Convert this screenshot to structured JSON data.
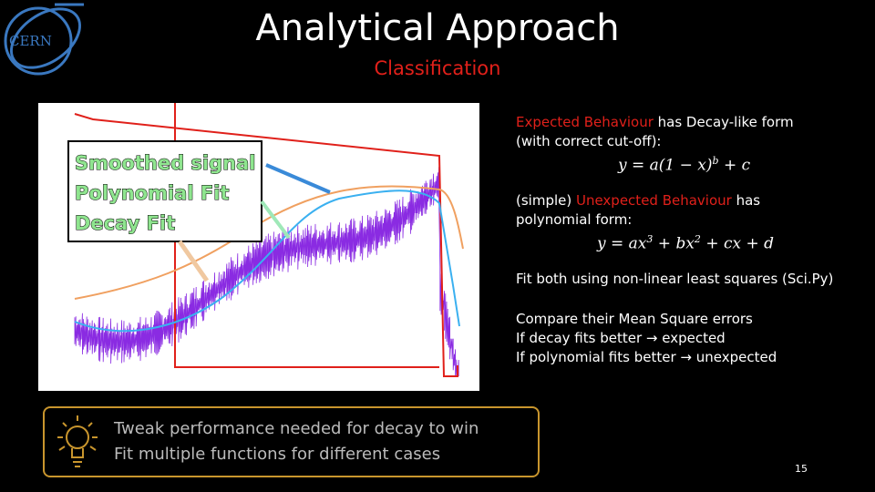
{
  "logo": "CERN",
  "header": {
    "title": "Analytical Approach",
    "subtitle": "Classification"
  },
  "figure": {
    "legend": [
      "Smoothed signal",
      "Polynomial Fit",
      "Decay Fit"
    ]
  },
  "bullets": {
    "expected": {
      "highlight": "Expected Behaviour",
      "text": " has Decay-like form",
      "line2": "(with correct cut-off):",
      "formula": [
        "y = a(1 − x)",
        "b",
        " + c"
      ]
    },
    "unexpected": {
      "prefix": "(simple) ",
      "highlight": "Unexpected Behaviour",
      "text": " has",
      "line2": "polynomial form:",
      "formula": [
        "y = ax",
        "3",
        " + bx",
        "2",
        " + cx + d"
      ]
    },
    "fit": "Fit both using non-linear least squares (Sci.Py)",
    "compare": [
      "Compare their Mean Square errors",
      "If decay fits better → expected",
      "If polynomial fits better → unexpected"
    ]
  },
  "callout": [
    "Tweak performance needed for decay to win",
    "Fit multiple functions for different cases"
  ],
  "page_number": "15"
}
